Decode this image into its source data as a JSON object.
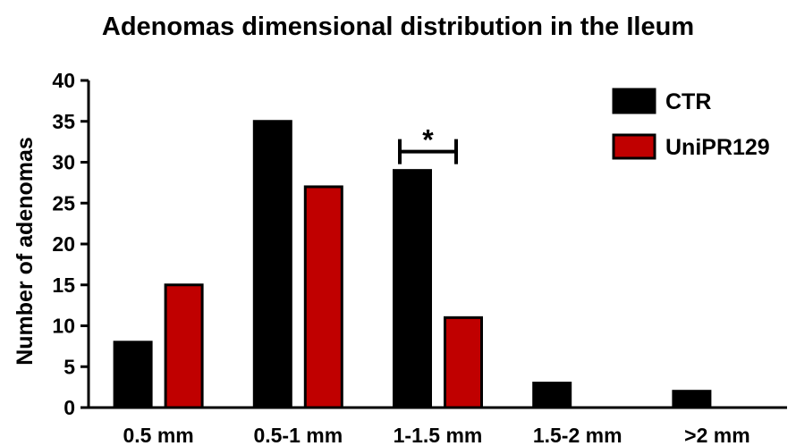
{
  "chart_data": {
    "type": "bar",
    "title": "Adenomas dimensional distribution in the Ileum",
    "xlabel": "",
    "ylabel": "Number of adenomas",
    "categories": [
      "0.5 mm",
      "0.5-1 mm",
      "1-1.5 mm",
      "1.5-2 mm",
      ">2 mm"
    ],
    "series": [
      {
        "name": "CTR",
        "color": "#000000",
        "values": [
          8,
          35,
          29,
          3,
          2
        ]
      },
      {
        "name": "UniPR129",
        "color": "#c00000",
        "values": [
          15,
          27,
          11,
          0,
          0
        ]
      }
    ],
    "ylim": [
      0,
      40
    ],
    "yticks": [
      0,
      5,
      10,
      15,
      20,
      25,
      30,
      35,
      40
    ],
    "grid": false,
    "legend_position": "top-right",
    "annotations": [
      {
        "text": "*",
        "category": "1-1.5 mm",
        "type": "significance-bracket"
      }
    ]
  }
}
